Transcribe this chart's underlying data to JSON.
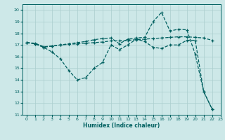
{
  "xlabel": "Humidex (Indice chaleur)",
  "xlim": [
    -0.5,
    23
  ],
  "ylim": [
    11,
    20.5
  ],
  "yticks": [
    11,
    12,
    13,
    14,
    15,
    16,
    17,
    18,
    19,
    20
  ],
  "xticks": [
    0,
    1,
    2,
    3,
    4,
    5,
    6,
    7,
    8,
    9,
    10,
    11,
    12,
    13,
    14,
    15,
    16,
    17,
    18,
    19,
    20,
    21,
    22,
    23
  ],
  "bg_color": "#cde8e8",
  "grid_color": "#aacece",
  "line_color": "#006060",
  "line1_y": [
    17.2,
    17.1,
    16.8,
    16.4,
    15.8,
    14.8,
    14.0,
    14.2,
    15.0,
    15.5,
    17.0,
    16.6,
    17.0,
    17.5,
    17.3,
    16.8,
    16.7,
    17.0,
    17.0,
    17.4,
    17.4,
    13.0,
    11.5
  ],
  "line2_y": [
    17.2,
    17.15,
    16.85,
    16.9,
    17.0,
    17.05,
    17.1,
    17.15,
    17.2,
    17.25,
    17.35,
    17.35,
    17.4,
    17.45,
    17.5,
    17.55,
    17.6,
    17.65,
    17.7,
    17.7,
    17.65,
    17.6,
    17.4
  ],
  "line3_y": [
    17.2,
    17.1,
    16.8,
    16.9,
    17.0,
    17.1,
    17.2,
    17.3,
    17.45,
    17.55,
    17.6,
    17.1,
    17.5,
    17.6,
    17.65,
    19.0,
    19.8,
    18.2,
    18.35,
    18.3,
    16.2,
    13.0,
    11.5
  ]
}
